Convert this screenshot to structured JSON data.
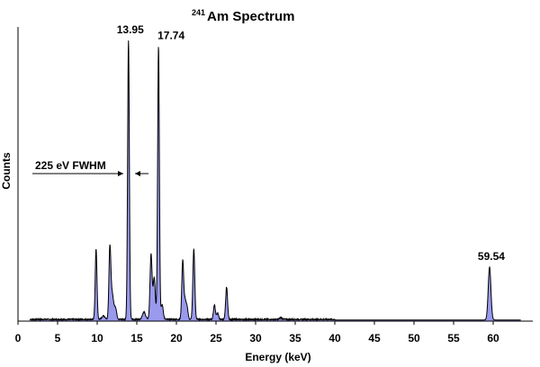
{
  "chart_data": {
    "type": "area",
    "title_sup": "241",
    "title_main": "Am Spectrum",
    "xlabel": "Energy (keV)",
    "ylabel": "Counts",
    "xlim": [
      0,
      65
    ],
    "ylim": [
      0,
      1.0
    ],
    "xticks": [
      0,
      5,
      10,
      15,
      20,
      25,
      30,
      35,
      40,
      45,
      50,
      55,
      60
    ],
    "grid": false,
    "legend": "none",
    "fill_color": "#9999ee",
    "line_color": "#000000",
    "peaks": [
      {
        "x": 9.86,
        "y": 0.24,
        "w": 0.11
      },
      {
        "x": 10.8,
        "y": 0.012,
        "w": 0.2
      },
      {
        "x": 11.6,
        "y": 0.24,
        "w": 0.12
      },
      {
        "x": 11.9,
        "y": 0.085,
        "w": 0.16
      },
      {
        "x": 12.3,
        "y": 0.04,
        "w": 0.15
      },
      {
        "x": 13.95,
        "y": 0.95,
        "w": 0.11
      },
      {
        "x": 15.9,
        "y": 0.025,
        "w": 0.2
      },
      {
        "x": 16.8,
        "y": 0.22,
        "w": 0.13
      },
      {
        "x": 17.2,
        "y": 0.14,
        "w": 0.14
      },
      {
        "x": 17.74,
        "y": 0.93,
        "w": 0.11
      },
      {
        "x": 18.2,
        "y": 0.05,
        "w": 0.14
      },
      {
        "x": 20.8,
        "y": 0.2,
        "w": 0.12
      },
      {
        "x": 21.1,
        "y": 0.06,
        "w": 0.12
      },
      {
        "x": 21.35,
        "y": 0.04,
        "w": 0.12
      },
      {
        "x": 22.2,
        "y": 0.24,
        "w": 0.12
      },
      {
        "x": 24.8,
        "y": 0.05,
        "w": 0.12
      },
      {
        "x": 25.2,
        "y": 0.022,
        "w": 0.12
      },
      {
        "x": 26.34,
        "y": 0.11,
        "w": 0.12
      },
      {
        "x": 33.2,
        "y": 0.006,
        "w": 0.15
      },
      {
        "x": 59.54,
        "y": 0.18,
        "w": 0.17
      }
    ],
    "baseline": 0.004,
    "peak_labels": [
      {
        "text": "13.95",
        "x": 13.95
      },
      {
        "text": "17.74",
        "x": 17.74
      },
      {
        "text": "59.54",
        "x": 59.54
      }
    ],
    "annotation": {
      "text": "225 eV FWHM"
    }
  }
}
